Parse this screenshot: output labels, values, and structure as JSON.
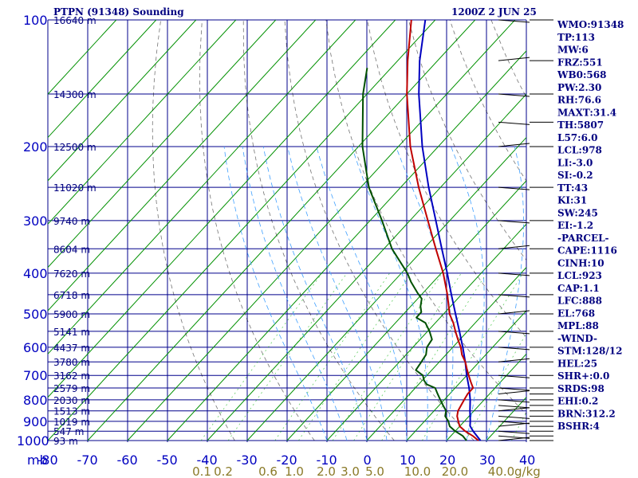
{
  "chart_data": {
    "type": "skew-t sounding",
    "title": "PTPN (91348) Sounding",
    "timestamp": "1200Z  2 JUN 25",
    "pressure_axis_unit": "mb",
    "pressure_levels": [
      100,
      200,
      300,
      400,
      500,
      600,
      700,
      800,
      900,
      1000
    ],
    "pressure_labels": [
      "100",
      "200",
      "300",
      "400",
      "500",
      "600",
      "700",
      "800",
      "900",
      "1000"
    ],
    "temperature_ticks": [
      -80,
      -70,
      -60,
      -50,
      -40,
      -30,
      -20,
      -10,
      0,
      10,
      20,
      30,
      40
    ],
    "temperature_labels": [
      "-80",
      "-70",
      "-60",
      "-50",
      "-40",
      "-30",
      "-20",
      "-10",
      "0",
      "10",
      "20",
      "30",
      "40"
    ],
    "height_labels": [
      {
        "p": 100,
        "label": "16640 m"
      },
      {
        "p": 150,
        "label": "14300 m"
      },
      {
        "p": 200,
        "label": "12500 m"
      },
      {
        "p": 250,
        "label": "11020 m"
      },
      {
        "p": 300,
        "label": "9740 m"
      },
      {
        "p": 350,
        "label": "8604 m"
      },
      {
        "p": 400,
        "label": "7620 m"
      },
      {
        "p": 450,
        "label": "6718 m"
      },
      {
        "p": 500,
        "label": "5900 m"
      },
      {
        "p": 550,
        "label": "5141 m"
      },
      {
        "p": 600,
        "label": "4437 m"
      },
      {
        "p": 650,
        "label": "3780 m"
      },
      {
        "p": 700,
        "label": "3162 m"
      },
      {
        "p": 750,
        "label": "2579 m"
      },
      {
        "p": 800,
        "label": "2030 m"
      },
      {
        "p": 850,
        "label": "1513 m"
      },
      {
        "p": 900,
        "label": "1019 m"
      },
      {
        "p": 950,
        "label": "547 m"
      },
      {
        "p": 1000,
        "label": "93 m"
      }
    ],
    "mixing_ratio_labels": [
      "0.1",
      "0.2",
      "0.6",
      "1.0",
      "2.0",
      "3.0",
      "5.0",
      "10.0",
      "20.0",
      "40.0"
    ],
    "mixing_ratio_unit": "g/kg",
    "temperature_profile": [
      {
        "p": 1000,
        "t": 28.0
      },
      {
        "p": 975,
        "t": 25.5
      },
      {
        "p": 950,
        "t": 22.5
      },
      {
        "p": 925,
        "t": 20.0
      },
      {
        "p": 900,
        "t": 18.5
      },
      {
        "p": 875,
        "t": 17.0
      },
      {
        "p": 850,
        "t": 16.0
      },
      {
        "p": 825,
        "t": 15.5
      },
      {
        "p": 800,
        "t": 15.0
      },
      {
        "p": 775,
        "t": 14.5
      },
      {
        "p": 750,
        "t": 14.5
      },
      {
        "p": 725,
        "t": 12.5
      },
      {
        "p": 700,
        "t": 10.5
      },
      {
        "p": 675,
        "t": 8.5
      },
      {
        "p": 650,
        "t": 6.5
      },
      {
        "p": 625,
        "t": 4.0
      },
      {
        "p": 600,
        "t": 2.0
      },
      {
        "p": 575,
        "t": -0.5
      },
      {
        "p": 550,
        "t": -3.0
      },
      {
        "p": 525,
        "t": -5.5
      },
      {
        "p": 500,
        "t": -8.5
      },
      {
        "p": 450,
        "t": -13.5
      },
      {
        "p": 400,
        "t": -19.5
      },
      {
        "p": 350,
        "t": -27.0
      },
      {
        "p": 300,
        "t": -35.5
      },
      {
        "p": 250,
        "t": -45.5
      },
      {
        "p": 200,
        "t": -57.0
      },
      {
        "p": 150,
        "t": -70.0
      },
      {
        "p": 125,
        "t": -77.5
      },
      {
        "p": 100,
        "t": -86.0
      }
    ],
    "dewpoint_profile": [
      {
        "p": 1000,
        "td": 25.0
      },
      {
        "p": 975,
        "td": 23.0
      },
      {
        "p": 950,
        "td": 20.0
      },
      {
        "p": 925,
        "td": 17.5
      },
      {
        "p": 900,
        "td": 16.0
      },
      {
        "p": 875,
        "td": 14.0
      },
      {
        "p": 850,
        "td": 13.0
      },
      {
        "p": 825,
        "td": 11.0
      },
      {
        "p": 800,
        "td": 9.0
      },
      {
        "p": 775,
        "td": 7.0
      },
      {
        "p": 750,
        "td": 5.0
      },
      {
        "p": 735,
        "td": 2.0
      },
      {
        "p": 720,
        "td": 0.5
      },
      {
        "p": 700,
        "td": -1.0
      },
      {
        "p": 680,
        "td": -4.0
      },
      {
        "p": 650,
        "td": -4.5
      },
      {
        "p": 625,
        "td": -5.0
      },
      {
        "p": 600,
        "td": -6.5
      },
      {
        "p": 575,
        "td": -7.0
      },
      {
        "p": 550,
        "td": -9.5
      },
      {
        "p": 525,
        "td": -12.5
      },
      {
        "p": 510,
        "td": -16.0
      },
      {
        "p": 495,
        "td": -16.0
      },
      {
        "p": 480,
        "td": -17.5
      },
      {
        "p": 460,
        "td": -19.0
      },
      {
        "p": 445,
        "td": -21.5
      },
      {
        "p": 420,
        "td": -25.5
      },
      {
        "p": 400,
        "td": -28.5
      },
      {
        "p": 350,
        "td": -38.0
      },
      {
        "p": 300,
        "td": -47.0
      },
      {
        "p": 250,
        "td": -58.0
      },
      {
        "p": 200,
        "td": -69.0
      },
      {
        "p": 150,
        "td": -81.0
      },
      {
        "p": 130,
        "td": -86.0
      }
    ],
    "parcel_profile": [
      {
        "p": 1000,
        "t": 28.5
      },
      {
        "p": 950,
        "t": 24.5
      },
      {
        "p": 923,
        "t": 22.5
      },
      {
        "p": 900,
        "t": 21.5
      },
      {
        "p": 850,
        "t": 19.0
      },
      {
        "p": 800,
        "t": 16.5
      },
      {
        "p": 750,
        "t": 13.5
      },
      {
        "p": 700,
        "t": 10.0
      },
      {
        "p": 650,
        "t": 6.5
      },
      {
        "p": 600,
        "t": 2.5
      },
      {
        "p": 550,
        "t": -2.0
      },
      {
        "p": 500,
        "t": -7.0
      },
      {
        "p": 450,
        "t": -12.5
      },
      {
        "p": 400,
        "t": -18.5
      },
      {
        "p": 350,
        "t": -25.5
      },
      {
        "p": 300,
        "t": -33.5
      },
      {
        "p": 250,
        "t": -43.0
      },
      {
        "p": 200,
        "t": -54.0
      },
      {
        "p": 150,
        "t": -67.0
      },
      {
        "p": 125,
        "t": -74.5
      },
      {
        "p": 100,
        "t": -82.5
      }
    ],
    "wind_barb_pressures": [
      1000,
      975,
      950,
      925,
      900,
      875,
      850,
      825,
      800,
      775,
      750,
      700,
      650,
      600,
      550,
      500,
      450,
      400,
      350,
      300,
      250,
      200,
      175,
      150,
      125,
      100
    ],
    "series_colors": {
      "temperature": "#c00000",
      "dewpoint": "#005000",
      "parcel": "#0000c0",
      "isotherm": "#009000",
      "mixing_ratio": "#00b000",
      "moist_adiabat": "#40a0ff",
      "dry_adiabat": "#000000",
      "grid": "#00008b"
    }
  },
  "indices": [
    "WMO:91348",
    "TP:113",
    "MW:6",
    "FRZ:551",
    "WB0:568",
    "PW:2.30",
    "RH:76.6",
    "MAXT:31.4",
    "TH:5807",
    "L57:6.0",
    "LCL:978",
    "LI:-3.0",
    "SI:-0.2",
    "TT:43",
    "KI:31",
    "SW:245",
    "EI:-1.2",
    "-PARCEL-",
    "CAPE:1116",
    "CINH:10",
    "LCL:923",
    "CAP:1.1",
    "LFC:888",
    "EL:768",
    "MPL:88",
    "-WIND-",
    "STM:128/12",
    "HEL:25",
    "SHR+:0.0",
    "SRDS:98",
    "EHI:0.2",
    "BRN:312.2",
    "BSHR:4"
  ]
}
